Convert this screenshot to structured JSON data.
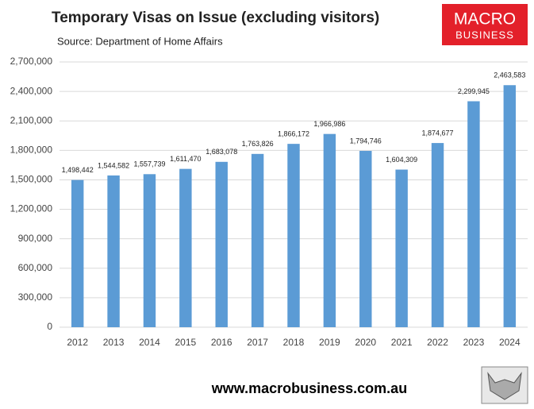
{
  "chart_data": {
    "type": "bar",
    "title": "Temporary Visas on Issue (excluding visitors)",
    "subtitle": "Source: Department of Home Affairs",
    "categories": [
      "2012",
      "2013",
      "2014",
      "2015",
      "2016",
      "2017",
      "2018",
      "2019",
      "2020",
      "2021",
      "2022",
      "2023",
      "2024"
    ],
    "values": [
      1498442,
      1544582,
      1557739,
      1611470,
      1683078,
      1763826,
      1866172,
      1966986,
      1794746,
      1604309,
      1874677,
      2299945,
      2463583
    ],
    "value_labels": [
      "1,498,442",
      "1,544,582",
      "1,557,739",
      "1,611,470",
      "1,683,078",
      "1,763,826",
      "1,866,172",
      "1,966,986",
      "1,794,746",
      "1,604,309",
      "1,874,677",
      "2,299,945",
      "2,463,583"
    ],
    "color": "#5b9bd5",
    "ylim": [
      0,
      2700000
    ],
    "yticks": [
      0,
      {
        "value": 300000,
        "label": "300,000"
      },
      {
        "value": 600000,
        "label": "600,000"
      },
      {
        "value": 900000,
        "label": "900,000"
      },
      {
        "value": 1200000,
        "label": "1,200,000"
      },
      {
        "value": 1500000,
        "label": "1,500,000"
      },
      {
        "value": 1800000,
        "label": "1,800,000"
      },
      {
        "value": 2100000,
        "label": "2,100,000"
      },
      {
        "value": 2400000,
        "label": "2,400,000"
      },
      {
        "value": 2700000,
        "label": "2,700,000"
      }
    ],
    "grid": true
  },
  "logo": {
    "line1": "MACRO",
    "line2": "BUSINESS"
  },
  "footer": "www.macrobusiness.com.au"
}
